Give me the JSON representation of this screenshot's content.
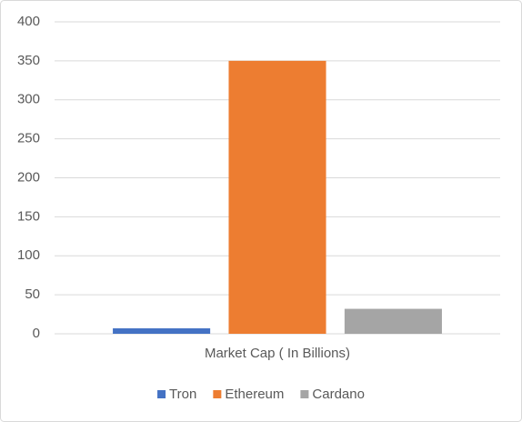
{
  "chart_data": {
    "type": "bar",
    "categories": [
      "Market Cap ( In Billions)"
    ],
    "series": [
      {
        "name": "Tron",
        "color": "#4472c4",
        "values": [
          7
        ]
      },
      {
        "name": "Ethereum",
        "color": "#ed7d31",
        "values": [
          350
        ]
      },
      {
        "name": "Cardano",
        "color": "#a5a5a5",
        "values": [
          32
        ]
      }
    ],
    "ylim": [
      0,
      400
    ],
    "yticks": [
      0,
      50,
      100,
      150,
      200,
      250,
      300,
      350,
      400
    ],
    "grid": true,
    "legend": "bottom"
  }
}
